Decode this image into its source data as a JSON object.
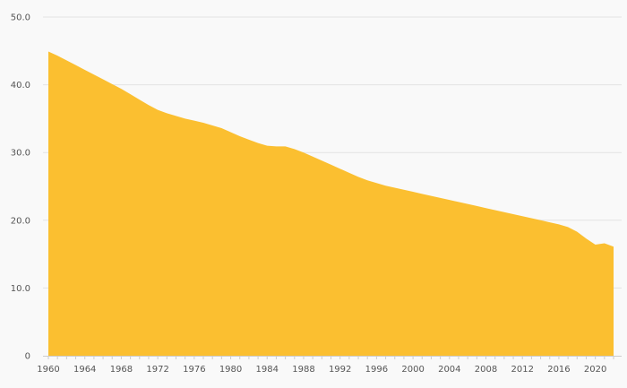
{
  "chart_data": {
    "type": "area",
    "title": "",
    "xlabel": "",
    "ylabel": "",
    "grid": true,
    "color": "#fbbf30",
    "xlim": [
      1960,
      2022
    ],
    "ylim": [
      0,
      50
    ],
    "y_ticks": [
      0,
      10,
      20,
      30,
      40,
      50
    ],
    "y_tick_labels": [
      "0",
      "10.0",
      "20.0",
      "30.0",
      "40.0",
      "50.0"
    ],
    "x_ticks": [
      1960,
      1964,
      1968,
      1972,
      1976,
      1980,
      1984,
      1988,
      1992,
      1996,
      2000,
      2004,
      2008,
      2012,
      2016,
      2020
    ],
    "x_tick_labels": [
      "1960",
      "1964",
      "1968",
      "1972",
      "1976",
      "1980",
      "1984",
      "1988",
      "1992",
      "1996",
      "2000",
      "2004",
      "2008",
      "2012",
      "2016",
      "2020"
    ],
    "x": [
      1960,
      1961,
      1962,
      1963,
      1964,
      1965,
      1966,
      1967,
      1968,
      1969,
      1970,
      1971,
      1972,
      1973,
      1974,
      1975,
      1976,
      1977,
      1978,
      1979,
      1980,
      1981,
      1982,
      1983,
      1984,
      1985,
      1986,
      1987,
      1988,
      1989,
      1990,
      1991,
      1992,
      1993,
      1994,
      1995,
      1996,
      1997,
      1998,
      1999,
      2000,
      2001,
      2002,
      2003,
      2004,
      2005,
      2006,
      2007,
      2008,
      2009,
      2010,
      2011,
      2012,
      2013,
      2014,
      2015,
      2016,
      2017,
      2018,
      2019,
      2020,
      2021,
      2022
    ],
    "values": [
      44.9,
      44.3,
      43.6,
      42.9,
      42.2,
      41.5,
      40.8,
      40.1,
      39.4,
      38.6,
      37.8,
      37.0,
      36.3,
      35.8,
      35.4,
      35.0,
      34.7,
      34.4,
      34.0,
      33.6,
      33.0,
      32.4,
      31.9,
      31.4,
      31.0,
      30.9,
      30.9,
      30.5,
      30.0,
      29.4,
      28.8,
      28.2,
      27.6,
      27.0,
      26.4,
      25.9,
      25.5,
      25.1,
      24.8,
      24.5,
      24.2,
      23.9,
      23.6,
      23.3,
      23.0,
      22.7,
      22.4,
      22.1,
      21.8,
      21.5,
      21.2,
      20.9,
      20.6,
      20.3,
      20.0,
      19.7,
      19.4,
      19.0,
      18.3,
      17.3,
      16.4,
      16.6,
      16.1
    ]
  }
}
